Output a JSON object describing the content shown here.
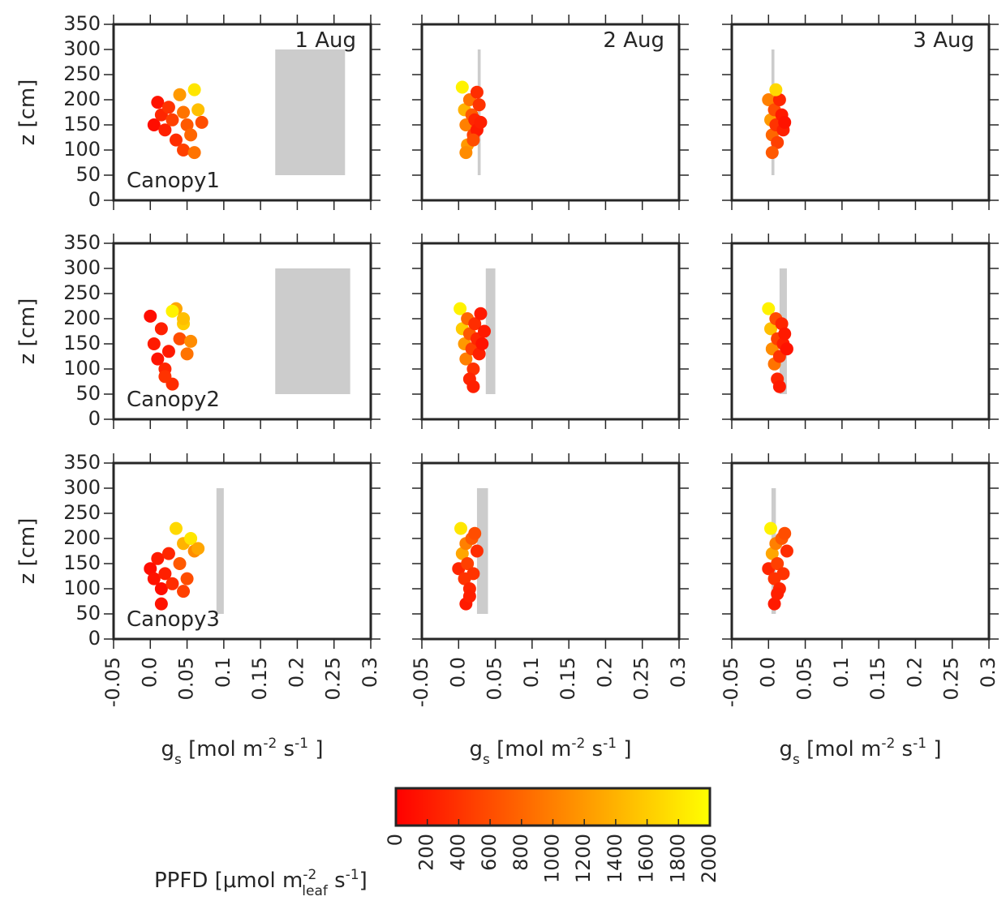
{
  "chart_data": [
    {
      "type": "scatter",
      "title": "1 Aug",
      "annotation": "Canopy1",
      "ylabel": "z [cm]",
      "show_xticklabels": false,
      "show_yticklabels": true,
      "xlim": [
        -0.05,
        0.3
      ],
      "ylim": [
        0,
        350
      ],
      "xticks": [
        -0.05,
        {
          "value": 0,
          "label": "0.0"
        },
        0.05,
        0.1,
        0.15,
        0.2,
        0.25,
        0.3
      ],
      "yticks": [
        0,
        50,
        100,
        150,
        200,
        250,
        300,
        350
      ],
      "band_x": [
        0.17,
        0.265
      ],
      "band_y": [
        50,
        300
      ],
      "band_color": "#cccccc",
      "colormap": "autumn",
      "x": [
        0.005,
        0.01,
        0.015,
        0.02,
        0.025,
        0.03,
        0.035,
        0.04,
        0.045,
        0.05,
        0.055,
        0.06,
        0.065,
        0.07,
        0.045,
        0.06
      ],
      "y": [
        150,
        195,
        170,
        140,
        185,
        160,
        120,
        210,
        175,
        150,
        130,
        220,
        180,
        155,
        100,
        95
      ],
      "c": [
        100,
        150,
        300,
        250,
        400,
        500,
        350,
        1200,
        900,
        700,
        800,
        1800,
        1500,
        600,
        500,
        900
      ]
    },
    {
      "type": "scatter",
      "title": "2 Aug",
      "show_xticklabels": false,
      "show_yticklabels": false,
      "xlim": [
        -0.05,
        0.3
      ],
      "ylim": [
        0,
        350
      ],
      "xticks": [
        -0.05,
        {
          "value": 0,
          "label": "0.0"
        },
        0.05,
        0.1,
        0.15,
        0.2,
        0.25,
        0.3
      ],
      "yticks": [
        0,
        50,
        100,
        150,
        200,
        250,
        300,
        350
      ],
      "band_x": [
        0.026,
        0.03
      ],
      "band_y": [
        50,
        300
      ],
      "band_color": "#cccccc",
      "colormap": "autumn",
      "x": [
        0.005,
        0.008,
        0.01,
        0.012,
        0.015,
        0.018,
        0.02,
        0.022,
        0.025,
        0.028,
        0.03,
        0.01,
        0.02,
        0.025
      ],
      "y": [
        225,
        180,
        150,
        110,
        200,
        170,
        130,
        160,
        140,
        190,
        155,
        95,
        120,
        215
      ],
      "c": [
        1900,
        1400,
        1000,
        1200,
        900,
        700,
        500,
        300,
        200,
        400,
        250,
        1100,
        600,
        350
      ]
    },
    {
      "type": "scatter",
      "title": "3 Aug",
      "show_xticklabels": false,
      "show_yticklabels": false,
      "xlim": [
        -0.05,
        0.3
      ],
      "ylim": [
        0,
        350
      ],
      "xticks": [
        -0.05,
        {
          "value": 0,
          "label": "0.0"
        },
        0.05,
        0.1,
        0.15,
        0.2,
        0.25,
        0.3
      ],
      "yticks": [
        0,
        50,
        100,
        150,
        200,
        250,
        300,
        350
      ],
      "band_x": [
        0.004,
        0.008
      ],
      "band_y": [
        50,
        300
      ],
      "band_color": "#cccccc",
      "colormap": "autumn",
      "x": [
        0.0,
        0.003,
        0.005,
        0.008,
        0.01,
        0.012,
        0.015,
        0.018,
        0.02,
        0.022,
        0.005,
        0.01
      ],
      "y": [
        200,
        160,
        130,
        180,
        150,
        115,
        200,
        170,
        140,
        155,
        95,
        220
      ],
      "c": [
        1000,
        1200,
        800,
        600,
        400,
        500,
        300,
        200,
        250,
        150,
        700,
        1700
      ]
    },
    {
      "type": "scatter",
      "annotation": "Canopy2",
      "ylabel": "z [cm]",
      "show_xticklabels": false,
      "show_yticklabels": true,
      "xlim": [
        -0.05,
        0.3
      ],
      "ylim": [
        0,
        350
      ],
      "xticks": [
        -0.05,
        {
          "value": 0,
          "label": "0.0"
        },
        0.05,
        0.1,
        0.15,
        0.2,
        0.25,
        0.3
      ],
      "yticks": [
        0,
        50,
        100,
        150,
        200,
        250,
        300,
        350
      ],
      "band_x": [
        0.17,
        0.272
      ],
      "band_y": [
        50,
        300
      ],
      "band_color": "#cccccc",
      "colormap": "autumn",
      "x": [
        0.0,
        0.005,
        0.01,
        0.015,
        0.02,
        0.025,
        0.03,
        0.035,
        0.04,
        0.045,
        0.05,
        0.055,
        0.02,
        0.03,
        0.045
      ],
      "y": [
        205,
        150,
        120,
        180,
        100,
        135,
        70,
        220,
        160,
        190,
        130,
        155,
        85,
        215,
        200
      ],
      "c": [
        100,
        200,
        150,
        250,
        300,
        200,
        350,
        1300,
        600,
        1600,
        900,
        1100,
        400,
        1900,
        1500
      ]
    },
    {
      "type": "scatter",
      "show_xticklabels": false,
      "show_yticklabels": false,
      "xlim": [
        -0.05,
        0.3
      ],
      "ylim": [
        0,
        350
      ],
      "xticks": [
        -0.05,
        {
          "value": 0,
          "label": "0.0"
        },
        0.05,
        0.1,
        0.15,
        0.2,
        0.25,
        0.3
      ],
      "yticks": [
        0,
        50,
        100,
        150,
        200,
        250,
        300,
        350
      ],
      "band_x": [
        0.037,
        0.05
      ],
      "band_y": [
        50,
        300
      ],
      "band_color": "#cccccc",
      "colormap": "autumn",
      "x": [
        0.002,
        0.005,
        0.008,
        0.01,
        0.012,
        0.015,
        0.018,
        0.02,
        0.022,
        0.025,
        0.028,
        0.03,
        0.032,
        0.035,
        0.015,
        0.02
      ],
      "y": [
        220,
        180,
        150,
        120,
        200,
        170,
        140,
        100,
        190,
        160,
        130,
        210,
        150,
        175,
        80,
        65
      ],
      "c": [
        1900,
        1600,
        1200,
        1000,
        800,
        700,
        500,
        400,
        350,
        300,
        250,
        200,
        150,
        200,
        300,
        250
      ]
    },
    {
      "type": "scatter",
      "show_xticklabels": false,
      "show_yticklabels": false,
      "xlim": [
        -0.05,
        0.3
      ],
      "ylim": [
        0,
        350
      ],
      "xticks": [
        -0.05,
        {
          "value": 0,
          "label": "0.0"
        },
        0.05,
        0.1,
        0.15,
        0.2,
        0.25,
        0.3
      ],
      "yticks": [
        0,
        50,
        100,
        150,
        200,
        250,
        300,
        350
      ],
      "band_x": [
        0.015,
        0.025
      ],
      "band_y": [
        50,
        300
      ],
      "band_color": "#cccccc",
      "colormap": "autumn",
      "x": [
        0.0,
        0.003,
        0.005,
        0.008,
        0.01,
        0.012,
        0.015,
        0.018,
        0.02,
        0.022,
        0.025,
        0.012,
        0.015
      ],
      "y": [
        220,
        180,
        140,
        110,
        200,
        160,
        125,
        190,
        150,
        170,
        140,
        80,
        65
      ],
      "c": [
        1900,
        1500,
        1100,
        900,
        600,
        500,
        400,
        300,
        250,
        200,
        150,
        300,
        200
      ]
    },
    {
      "type": "scatter",
      "annotation": "Canopy3",
      "ylabel": "z [cm]",
      "xlabel": [
        "g",
        "s",
        " [mol m",
        "-2",
        " s",
        "-1",
        " ]"
      ],
      "xlabel_styles": [
        "normal",
        "sub",
        "normal",
        "sup",
        "normal",
        "sup",
        "normal"
      ],
      "show_xticklabels": true,
      "show_yticklabels": true,
      "xlim": [
        -0.05,
        0.3
      ],
      "ylim": [
        0,
        350
      ],
      "xticks": [
        -0.05,
        {
          "value": 0,
          "label": "0.0"
        },
        0.05,
        0.1,
        0.15,
        0.2,
        0.25,
        0.3
      ],
      "yticks": [
        0,
        50,
        100,
        150,
        200,
        250,
        300,
        350
      ],
      "band_x": [
        0.09,
        0.1
      ],
      "band_y": [
        50,
        300
      ],
      "band_color": "#cccccc",
      "colormap": "autumn",
      "x": [
        0.0,
        0.005,
        0.01,
        0.015,
        0.02,
        0.025,
        0.03,
        0.035,
        0.04,
        0.045,
        0.05,
        0.055,
        0.06,
        0.065,
        0.015,
        0.045
      ],
      "y": [
        140,
        120,
        160,
        100,
        130,
        170,
        110,
        220,
        150,
        190,
        120,
        200,
        175,
        180,
        70,
        95
      ],
      "c": [
        100,
        150,
        200,
        100,
        250,
        300,
        350,
        1700,
        700,
        1400,
        600,
        1800,
        1100,
        1300,
        150,
        500
      ]
    },
    {
      "type": "scatter",
      "xlabel": [
        "g",
        "s",
        " [mol m",
        "-2",
        " s",
        "-1",
        " ]"
      ],
      "xlabel_styles": [
        "normal",
        "sub",
        "normal",
        "sup",
        "normal",
        "sup",
        "normal"
      ],
      "show_xticklabels": true,
      "show_yticklabels": false,
      "xlim": [
        -0.05,
        0.3
      ],
      "ylim": [
        0,
        350
      ],
      "xticks": [
        -0.05,
        {
          "value": 0,
          "label": "0.0"
        },
        0.05,
        0.1,
        0.15,
        0.2,
        0.25,
        0.3
      ],
      "yticks": [
        0,
        50,
        100,
        150,
        200,
        250,
        300,
        350
      ],
      "band_x": [
        0.025,
        0.04
      ],
      "band_y": [
        50,
        300
      ],
      "band_color": "#cccccc",
      "colormap": "autumn",
      "x": [
        0.0,
        0.003,
        0.005,
        0.008,
        0.01,
        0.012,
        0.015,
        0.018,
        0.02,
        0.022,
        0.025,
        0.01,
        0.015
      ],
      "y": [
        140,
        220,
        170,
        120,
        190,
        150,
        100,
        200,
        130,
        210,
        175,
        70,
        85
      ],
      "c": [
        300,
        1800,
        1300,
        400,
        1000,
        500,
        300,
        700,
        400,
        600,
        350,
        200,
        250
      ]
    },
    {
      "type": "scatter",
      "xlabel": [
        "g",
        "s",
        " [mol m",
        "-2",
        " s",
        "-1",
        " ]"
      ],
      "xlabel_styles": [
        "normal",
        "sub",
        "normal",
        "sup",
        "normal",
        "sup",
        "normal"
      ],
      "show_xticklabels": true,
      "show_yticklabels": false,
      "xlim": [
        -0.05,
        0.3
      ],
      "ylim": [
        0,
        350
      ],
      "xticks": [
        -0.05,
        {
          "value": 0,
          "label": "0.0"
        },
        0.05,
        0.1,
        0.15,
        0.2,
        0.25,
        0.3
      ],
      "yticks": [
        0,
        50,
        100,
        150,
        200,
        250,
        300,
        350
      ],
      "band_x": [
        0.004,
        0.01
      ],
      "band_y": [
        50,
        300
      ],
      "band_color": "#cccccc",
      "colormap": "autumn",
      "x": [
        0.0,
        0.003,
        0.005,
        0.008,
        0.01,
        0.012,
        0.015,
        0.018,
        0.02,
        0.022,
        0.025,
        0.008,
        0.012
      ],
      "y": [
        140,
        220,
        170,
        120,
        190,
        150,
        100,
        200,
        130,
        210,
        175,
        70,
        90
      ],
      "c": [
        300,
        1900,
        1300,
        400,
        1000,
        500,
        300,
        700,
        400,
        600,
        350,
        200,
        250
      ]
    }
  ],
  "colorbar": {
    "colormap": "autumn",
    "lim": [
      0,
      2000
    ],
    "ticks": [
      0,
      200,
      400,
      600,
      800,
      1000,
      1200,
      1400,
      1600,
      1800,
      2000
    ],
    "label": [
      "PPFD [μmol m",
      "-2",
      "leaf",
      " s",
      "-1",
      "]"
    ],
    "label_styles": [
      "normal",
      "sup",
      "sub-under",
      "normal",
      "sup",
      "normal"
    ]
  }
}
